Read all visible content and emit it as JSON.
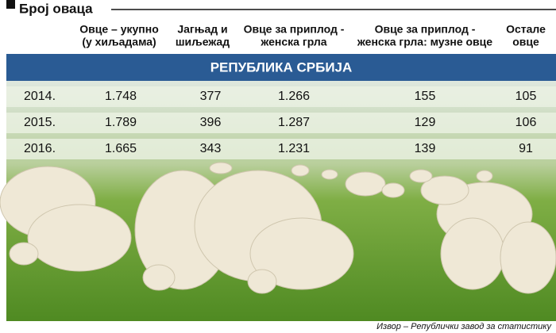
{
  "title": "Број оваца",
  "table": {
    "columns": [
      [
        "Овце – укупно",
        "(у хиљадама)"
      ],
      [
        "Јагњад и",
        "шиљежад"
      ],
      [
        "Овце за приплод -",
        "женска грла"
      ],
      [
        "Овце за приплод -",
        "женска грла: музне овце"
      ],
      [
        "Остале",
        "овце"
      ]
    ],
    "section": "РЕПУБЛИКА СРБИЈА",
    "rows": [
      [
        "2014.",
        "1.748",
        "377",
        "1.266",
        "155",
        "105"
      ],
      [
        "2015.",
        "1.789",
        "396",
        "1.287",
        "129",
        "106"
      ],
      [
        "2016.",
        "1.665",
        "343",
        "1.231",
        "139",
        "91"
      ]
    ]
  },
  "source": "Извор – Републички завод за статистику"
}
